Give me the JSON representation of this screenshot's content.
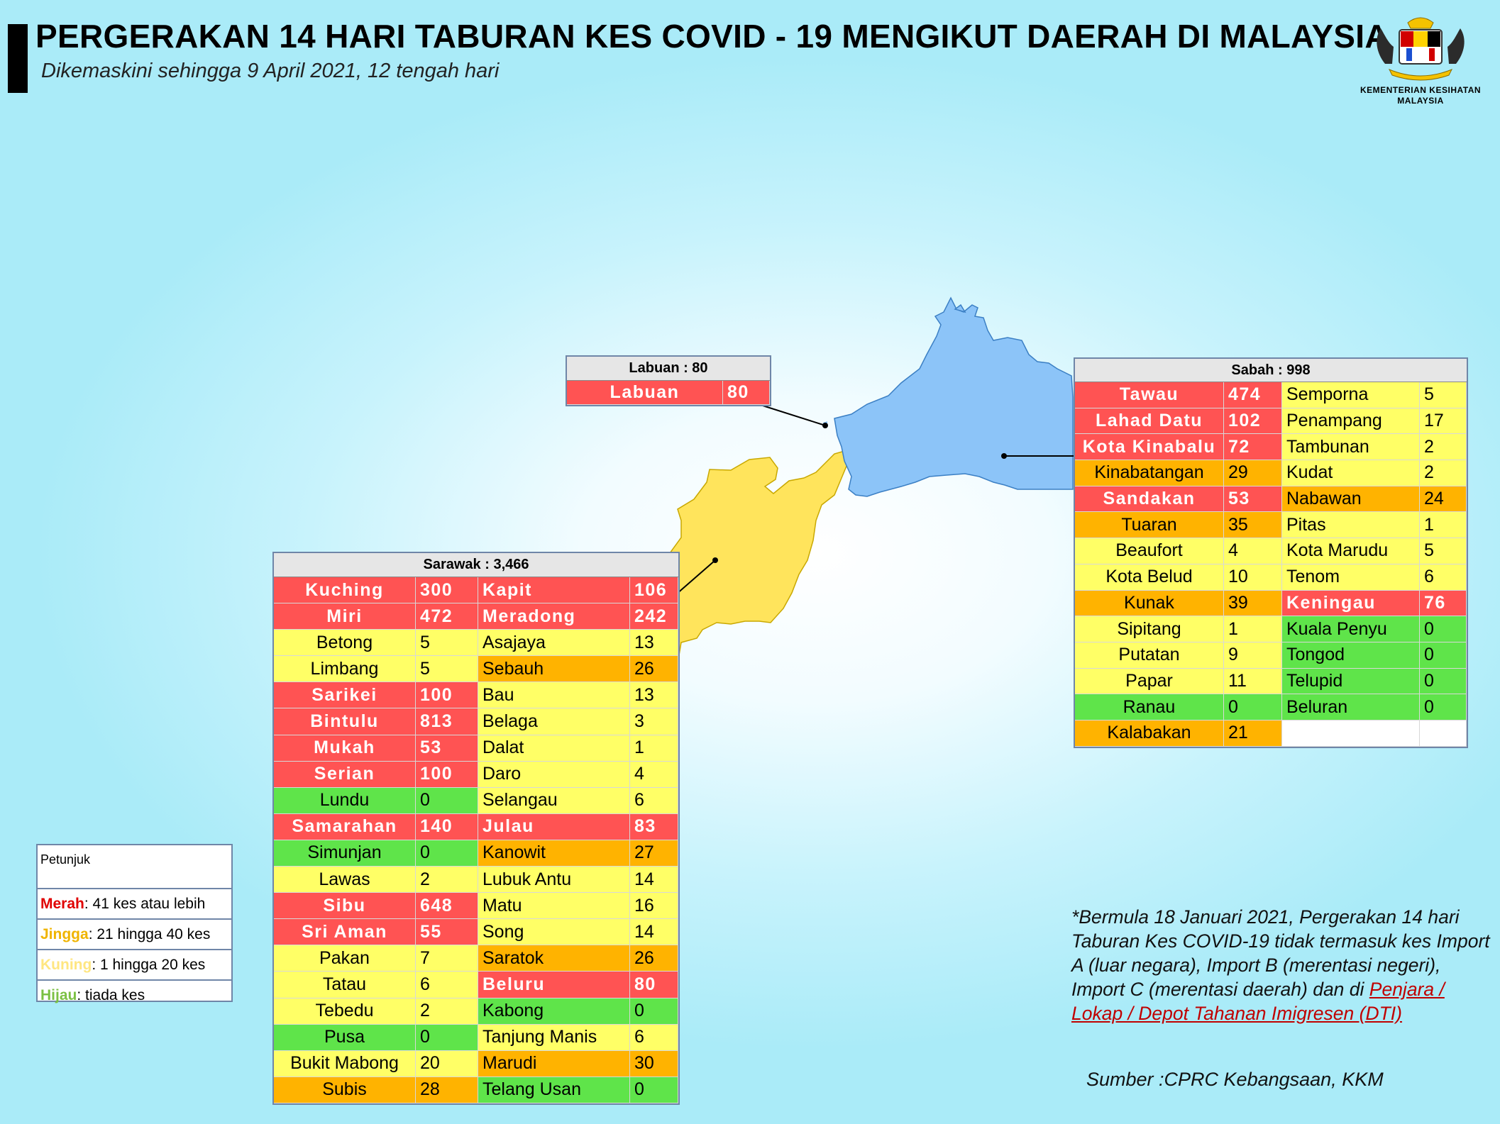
{
  "header": {
    "title": "PERGERAKAN 14 HARI TABURAN KES COVID - 19 MENGIKUT DAERAH DI MALAYSIA",
    "subtitle": "Dikemaskini sehingga 9 April 2021, 12 tengah hari",
    "logo_text_line1": "KEMENTERIAN KESIHATAN",
    "logo_text_line2": "MALAYSIA"
  },
  "colors": {
    "merah": "#ff5353",
    "jingga": "#ffb300",
    "kuning": "#ffff66",
    "hijau": "#5fe44a",
    "sabah_map": "#8cc4f8",
    "sarawak_map": "#ffe45c"
  },
  "labuan": {
    "header": "Labuan : 80",
    "rows": [
      {
        "name": "Labuan",
        "cases": "80",
        "level": "merah"
      }
    ]
  },
  "sabah": {
    "header": "Sabah : 998",
    "rows": [
      [
        {
          "name": "Tawau",
          "cases": "474",
          "level": "merah"
        },
        {
          "name": "Semporna",
          "cases": "5",
          "level": "kuning"
        }
      ],
      [
        {
          "name": "Lahad Datu",
          "cases": "102",
          "level": "merah"
        },
        {
          "name": "Penampang",
          "cases": "17",
          "level": "kuning"
        }
      ],
      [
        {
          "name": "Kota Kinabalu",
          "cases": "72",
          "level": "merah"
        },
        {
          "name": "Tambunan",
          "cases": "2",
          "level": "kuning"
        }
      ],
      [
        {
          "name": "Kinabatangan",
          "cases": "29",
          "level": "jingga"
        },
        {
          "name": "Kudat",
          "cases": "2",
          "level": "kuning"
        }
      ],
      [
        {
          "name": "Sandakan",
          "cases": "53",
          "level": "merah"
        },
        {
          "name": "Nabawan",
          "cases": "24",
          "level": "jingga"
        }
      ],
      [
        {
          "name": "Tuaran",
          "cases": "35",
          "level": "jingga"
        },
        {
          "name": "Pitas",
          "cases": "1",
          "level": "kuning"
        }
      ],
      [
        {
          "name": "Beaufort",
          "cases": "4",
          "level": "kuning"
        },
        {
          "name": "Kota Marudu",
          "cases": "5",
          "level": "kuning"
        }
      ],
      [
        {
          "name": "Kota Belud",
          "cases": "10",
          "level": "kuning"
        },
        {
          "name": "Tenom",
          "cases": "6",
          "level": "kuning"
        }
      ],
      [
        {
          "name": "Kunak",
          "cases": "39",
          "level": "jingga"
        },
        {
          "name": "Keningau",
          "cases": "76",
          "level": "merah"
        }
      ],
      [
        {
          "name": "Sipitang",
          "cases": "1",
          "level": "kuning"
        },
        {
          "name": "Kuala Penyu",
          "cases": "0",
          "level": "hijau"
        }
      ],
      [
        {
          "name": "Putatan",
          "cases": "9",
          "level": "kuning"
        },
        {
          "name": "Tongod",
          "cases": "0",
          "level": "hijau"
        }
      ],
      [
        {
          "name": "Papar",
          "cases": "11",
          "level": "kuning"
        },
        {
          "name": "Telupid",
          "cases": "0",
          "level": "hijau"
        }
      ],
      [
        {
          "name": "Ranau",
          "cases": "0",
          "level": "hijau"
        },
        {
          "name": "Beluran",
          "cases": "0",
          "level": "hijau"
        }
      ],
      [
        {
          "name": "Kalabakan",
          "cases": "21",
          "level": "jingga"
        },
        {
          "name": "",
          "cases": "",
          "level": "empty"
        }
      ]
    ]
  },
  "sarawak": {
    "header": "Sarawak : 3,466",
    "rows": [
      [
        {
          "name": "Kuching",
          "cases": "300",
          "level": "merah"
        },
        {
          "name": "Kapit",
          "cases": "106",
          "level": "merah"
        }
      ],
      [
        {
          "name": "Miri",
          "cases": "472",
          "level": "merah"
        },
        {
          "name": "Meradong",
          "cases": "242",
          "level": "merah"
        }
      ],
      [
        {
          "name": "Betong",
          "cases": "5",
          "level": "kuning"
        },
        {
          "name": "Asajaya",
          "cases": "13",
          "level": "kuning"
        }
      ],
      [
        {
          "name": "Limbang",
          "cases": "5",
          "level": "kuning"
        },
        {
          "name": "Sebauh",
          "cases": "26",
          "level": "jingga"
        }
      ],
      [
        {
          "name": "Sarikei",
          "cases": "100",
          "level": "merah"
        },
        {
          "name": "Bau",
          "cases": "13",
          "level": "kuning"
        }
      ],
      [
        {
          "name": "Bintulu",
          "cases": "813",
          "level": "merah"
        },
        {
          "name": "Belaga",
          "cases": "3",
          "level": "kuning"
        }
      ],
      [
        {
          "name": "Mukah",
          "cases": "53",
          "level": "merah"
        },
        {
          "name": "Dalat",
          "cases": "1",
          "level": "kuning"
        }
      ],
      [
        {
          "name": "Serian",
          "cases": "100",
          "level": "merah"
        },
        {
          "name": "Daro",
          "cases": "4",
          "level": "kuning"
        }
      ],
      [
        {
          "name": "Lundu",
          "cases": "0",
          "level": "hijau"
        },
        {
          "name": "Selangau",
          "cases": "6",
          "level": "kuning"
        }
      ],
      [
        {
          "name": "Samarahan",
          "cases": "140",
          "level": "merah"
        },
        {
          "name": "Julau",
          "cases": "83",
          "level": "merah"
        }
      ],
      [
        {
          "name": "Simunjan",
          "cases": "0",
          "level": "hijau"
        },
        {
          "name": "Kanowit",
          "cases": "27",
          "level": "jingga"
        }
      ],
      [
        {
          "name": "Lawas",
          "cases": "2",
          "level": "kuning"
        },
        {
          "name": "Lubuk Antu",
          "cases": "14",
          "level": "kuning"
        }
      ],
      [
        {
          "name": "Sibu",
          "cases": "648",
          "level": "merah"
        },
        {
          "name": "Matu",
          "cases": "16",
          "level": "kuning"
        }
      ],
      [
        {
          "name": "Sri Aman",
          "cases": "55",
          "level": "merah"
        },
        {
          "name": "Song",
          "cases": "14",
          "level": "kuning"
        }
      ],
      [
        {
          "name": "Pakan",
          "cases": "7",
          "level": "kuning"
        },
        {
          "name": "Saratok",
          "cases": "26",
          "level": "jingga"
        }
      ],
      [
        {
          "name": "Tatau",
          "cases": "6",
          "level": "kuning"
        },
        {
          "name": "Beluru",
          "cases": "80",
          "level": "merah"
        }
      ],
      [
        {
          "name": "Tebedu",
          "cases": "2",
          "level": "kuning"
        },
        {
          "name": "Kabong",
          "cases": "0",
          "level": "hijau"
        }
      ],
      [
        {
          "name": "Pusa",
          "cases": "0",
          "level": "hijau"
        },
        {
          "name": "Tanjung Manis",
          "cases": "6",
          "level": "kuning"
        }
      ],
      [
        {
          "name": "Bukit Mabong",
          "cases": "20",
          "level": "kuning"
        },
        {
          "name": "Marudi",
          "cases": "30",
          "level": "jingga"
        }
      ],
      [
        {
          "name": "Subis",
          "cases": "28",
          "level": "jingga"
        },
        {
          "name": "Telang Usan",
          "cases": "0",
          "level": "hijau"
        }
      ]
    ]
  },
  "legend": {
    "title": "Petunjuk",
    "items": [
      {
        "key": "Merah",
        "desc": " : 41 kes atau lebih",
        "color": "#e00000"
      },
      {
        "key": "Jingga",
        "desc": " : 21 hingga 40 kes",
        "color": "#f0b400"
      },
      {
        "key": "Kuning",
        "desc": " : 1 hingga 20 kes",
        "color": "#ffe680"
      },
      {
        "key": "Hijau",
        "desc": " : tiada kes",
        "color": "#7bc043"
      }
    ]
  },
  "note": {
    "text": "*Bermula 18 Januari 2021, Pergerakan 14 hari Taburan Kes COVID-19 tidak termasuk kes Import A (luar negara), Import B (merentasi negeri), Import C (merentasi daerah) dan di ",
    "link_text": "Penjara / Lokap / Depot Tahanan Imigresen (DTI)"
  },
  "source": "Sumber :CPRC Kebangsaan,  KKM"
}
